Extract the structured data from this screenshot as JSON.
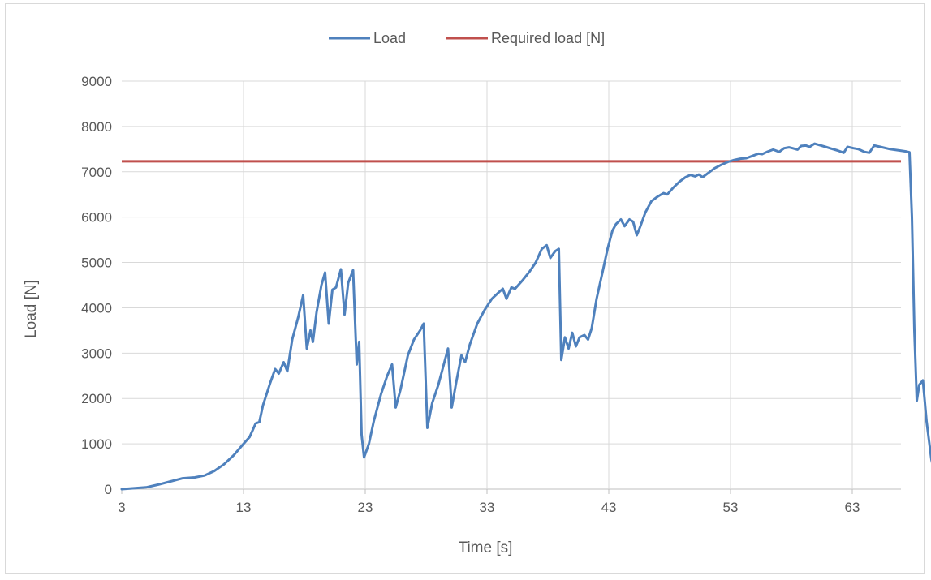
{
  "chart_data": {
    "type": "line",
    "title": "",
    "xlabel": "Time [s]",
    "ylabel": "Load [N]",
    "xlim": [
      3,
      68
    ],
    "ylim": [
      0,
      9000
    ],
    "x_ticks": [
      3,
      13,
      23,
      33,
      43,
      53,
      63
    ],
    "y_ticks": [
      0,
      1000,
      2000,
      3000,
      4000,
      5000,
      6000,
      7000,
      8000,
      9000
    ],
    "grid": true,
    "legend_position": "top",
    "series": [
      {
        "name": "Load",
        "color": "#4f81bd",
        "points": [
          [
            3,
            0
          ],
          [
            4,
            20
          ],
          [
            5,
            40
          ],
          [
            6,
            100
          ],
          [
            7,
            170
          ],
          [
            8,
            240
          ],
          [
            9,
            260
          ],
          [
            9.8,
            300
          ],
          [
            10.6,
            400
          ],
          [
            11.4,
            550
          ],
          [
            12.2,
            750
          ],
          [
            13,
            1000
          ],
          [
            13.5,
            1150
          ],
          [
            14,
            1450
          ],
          [
            14.3,
            1480
          ],
          [
            14.6,
            1850
          ],
          [
            15.2,
            2350
          ],
          [
            15.6,
            2650
          ],
          [
            15.9,
            2550
          ],
          [
            16.3,
            2800
          ],
          [
            16.6,
            2600
          ],
          [
            17,
            3300
          ],
          [
            17.5,
            3800
          ],
          [
            17.9,
            4280
          ],
          [
            18.2,
            3100
          ],
          [
            18.5,
            3500
          ],
          [
            18.7,
            3250
          ],
          [
            19,
            3900
          ],
          [
            19.4,
            4500
          ],
          [
            19.7,
            4780
          ],
          [
            20,
            3650
          ],
          [
            20.3,
            4400
          ],
          [
            20.6,
            4450
          ],
          [
            21,
            4850
          ],
          [
            21.3,
            3850
          ],
          [
            21.6,
            4550
          ],
          [
            22,
            4830
          ],
          [
            22.3,
            2750
          ],
          [
            22.5,
            3250
          ],
          [
            22.7,
            1200
          ],
          [
            22.9,
            700
          ],
          [
            23.3,
            1000
          ],
          [
            23.7,
            1500
          ],
          [
            24.3,
            2100
          ],
          [
            24.8,
            2500
          ],
          [
            25.2,
            2750
          ],
          [
            25.5,
            1800
          ],
          [
            25.9,
            2200
          ],
          [
            26.5,
            2950
          ],
          [
            27,
            3300
          ],
          [
            27.5,
            3500
          ],
          [
            27.8,
            3650
          ],
          [
            28.1,
            1350
          ],
          [
            28.5,
            1900
          ],
          [
            29,
            2300
          ],
          [
            29.5,
            2800
          ],
          [
            29.8,
            3100
          ],
          [
            30.1,
            1800
          ],
          [
            30.5,
            2400
          ],
          [
            30.9,
            2950
          ],
          [
            31.2,
            2800
          ],
          [
            31.6,
            3200
          ],
          [
            32.2,
            3650
          ],
          [
            32.8,
            3950
          ],
          [
            33.4,
            4200
          ],
          [
            34,
            4350
          ],
          [
            34.3,
            4420
          ],
          [
            34.6,
            4200
          ],
          [
            35,
            4450
          ],
          [
            35.3,
            4420
          ],
          [
            35.9,
            4600
          ],
          [
            36.5,
            4800
          ],
          [
            37,
            5000
          ],
          [
            37.5,
            5300
          ],
          [
            37.9,
            5380
          ],
          [
            38.2,
            5100
          ],
          [
            38.6,
            5250
          ],
          [
            38.9,
            5300
          ],
          [
            39.1,
            2850
          ],
          [
            39.4,
            3350
          ],
          [
            39.7,
            3100
          ],
          [
            40,
            3450
          ],
          [
            40.3,
            3150
          ],
          [
            40.6,
            3350
          ],
          [
            41,
            3400
          ],
          [
            41.3,
            3300
          ],
          [
            41.6,
            3550
          ],
          [
            42,
            4200
          ],
          [
            42.5,
            4800
          ],
          [
            42.9,
            5300
          ],
          [
            43.3,
            5700
          ],
          [
            43.6,
            5850
          ],
          [
            44,
            5950
          ],
          [
            44.3,
            5800
          ],
          [
            44.7,
            5950
          ],
          [
            45,
            5900
          ],
          [
            45.3,
            5600
          ],
          [
            45.6,
            5800
          ],
          [
            46,
            6100
          ],
          [
            46.5,
            6350
          ],
          [
            47,
            6450
          ],
          [
            47.5,
            6530
          ],
          [
            47.8,
            6500
          ],
          [
            48.3,
            6650
          ],
          [
            48.8,
            6780
          ],
          [
            49.3,
            6880
          ],
          [
            49.7,
            6930
          ],
          [
            50.1,
            6900
          ],
          [
            50.4,
            6940
          ],
          [
            50.7,
            6880
          ],
          [
            51.2,
            6980
          ],
          [
            51.7,
            7080
          ],
          [
            52.2,
            7150
          ],
          [
            52.8,
            7220
          ],
          [
            53.3,
            7260
          ],
          [
            53.8,
            7290
          ],
          [
            54.3,
            7300
          ],
          [
            54.8,
            7350
          ],
          [
            55.3,
            7400
          ],
          [
            55.6,
            7390
          ],
          [
            56,
            7440
          ],
          [
            56.5,
            7490
          ],
          [
            57,
            7440
          ],
          [
            57.4,
            7520
          ],
          [
            57.8,
            7540
          ],
          [
            58.1,
            7520
          ],
          [
            58.5,
            7490
          ],
          [
            58.8,
            7570
          ],
          [
            59.2,
            7580
          ],
          [
            59.5,
            7550
          ],
          [
            59.9,
            7620
          ],
          [
            60.3,
            7590
          ],
          [
            60.8,
            7550
          ],
          [
            61.3,
            7510
          ],
          [
            61.8,
            7470
          ],
          [
            62.3,
            7420
          ],
          [
            62.6,
            7550
          ],
          [
            63.1,
            7520
          ],
          [
            63.5,
            7500
          ],
          [
            64,
            7440
          ],
          [
            64.4,
            7420
          ],
          [
            64.8,
            7580
          ],
          [
            65.3,
            7550
          ],
          [
            66.1,
            7500
          ],
          [
            66.9,
            7470
          ],
          [
            67.4,
            7450
          ],
          [
            67.7,
            7430
          ],
          [
            67.9,
            6000
          ],
          [
            68.1,
            3500
          ],
          [
            68.3,
            1950
          ],
          [
            68.5,
            2300
          ],
          [
            68.8,
            2400
          ],
          [
            69.1,
            1500
          ],
          [
            69.5,
            650
          ],
          [
            69.9,
            200
          ],
          [
            70.3,
            30
          ],
          [
            70.6,
            0
          ]
        ]
      },
      {
        "name": "Required load [N]",
        "color": "#c0504d",
        "value": 7230
      }
    ]
  }
}
